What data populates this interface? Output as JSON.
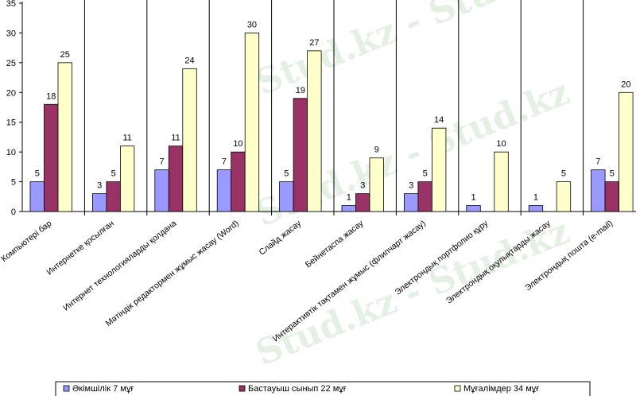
{
  "watermark": "Stud.kz - Stud.kz",
  "chart_data": {
    "type": "bar",
    "title": "",
    "xlabel": "",
    "ylabel": "",
    "ylim": [
      0,
      35
    ],
    "yticks": [
      0,
      5,
      10,
      15,
      20,
      25,
      30,
      35
    ],
    "grid": false,
    "legend_position": "bottom",
    "categories": [
      "Компьютері бар",
      "Интернетке қосылған",
      "Интернет технологияларды қолдана",
      "Мәтіндік редактормен жұмыс жасау (Word)",
      "Слайд жасау",
      "Бейнетаспа жасау",
      "Интерактивтік тақтамен жұмыс (флипчарт жасау)",
      "Электрондық портфолио құру",
      "Электрондық оқулықтарды жасау",
      "Электрондық пошта (e-mail)"
    ],
    "series": [
      {
        "name": "Әкімшілік 7 мұғ",
        "color": "#9999ff",
        "values": [
          5,
          3,
          7,
          7,
          5,
          1,
          3,
          1,
          1,
          7
        ]
      },
      {
        "name": "Бастауыш сынып 22 мұғ",
        "color": "#993366",
        "values": [
          18,
          5,
          11,
          10,
          19,
          3,
          5,
          null,
          null,
          5
        ]
      },
      {
        "name": "Мұғалімдер 34 мұғ",
        "color": "#ffffcc",
        "values": [
          25,
          11,
          24,
          30,
          27,
          9,
          14,
          10,
          5,
          20
        ]
      }
    ]
  }
}
